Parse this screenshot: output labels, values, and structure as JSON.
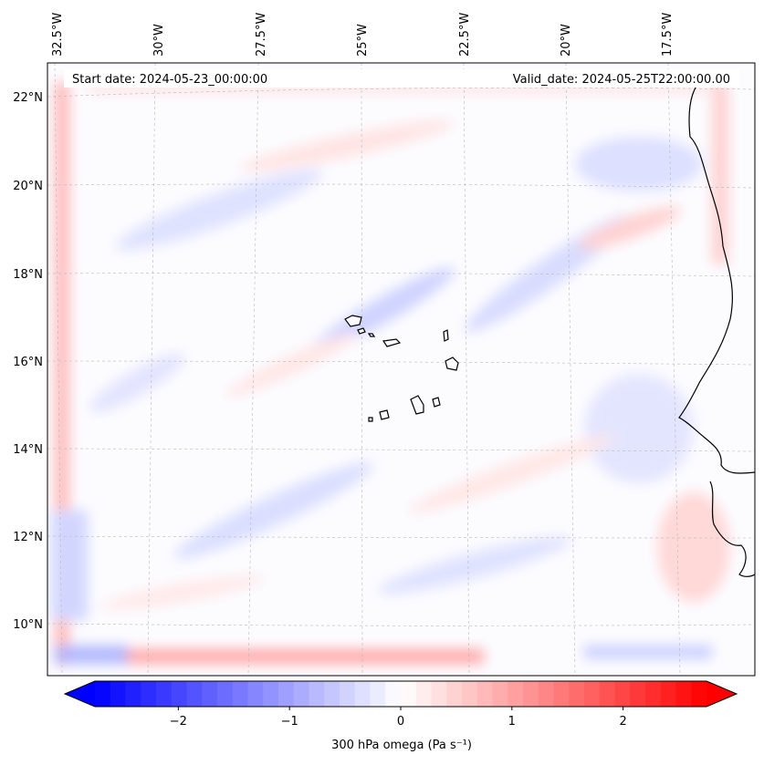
{
  "header": {
    "start_date": "Start date: 2024-05-23_00:00:00",
    "valid_date": "Valid_date: 2024-05-25T22:00:00.00"
  },
  "map": {
    "lon_labels": [
      "32.5°W",
      "30°W",
      "27.5°W",
      "25°W",
      "22.5°W",
      "20°W",
      "17.5°W"
    ],
    "lat_labels": [
      "22°N",
      "20°N",
      "18°N",
      "16°N",
      "14°N",
      "12°N",
      "10°N"
    ],
    "field": "300 hPa omega"
  },
  "colorbar": {
    "label": "300 hPa omega (Pa s⁻¹)",
    "ticks": [
      "−2",
      "−1",
      "0",
      "1",
      "2"
    ],
    "range": [
      -2.75,
      2.75
    ],
    "colors": {
      "low": "#0000ff",
      "mid": "#ffffff",
      "high": "#ff0000"
    }
  }
}
